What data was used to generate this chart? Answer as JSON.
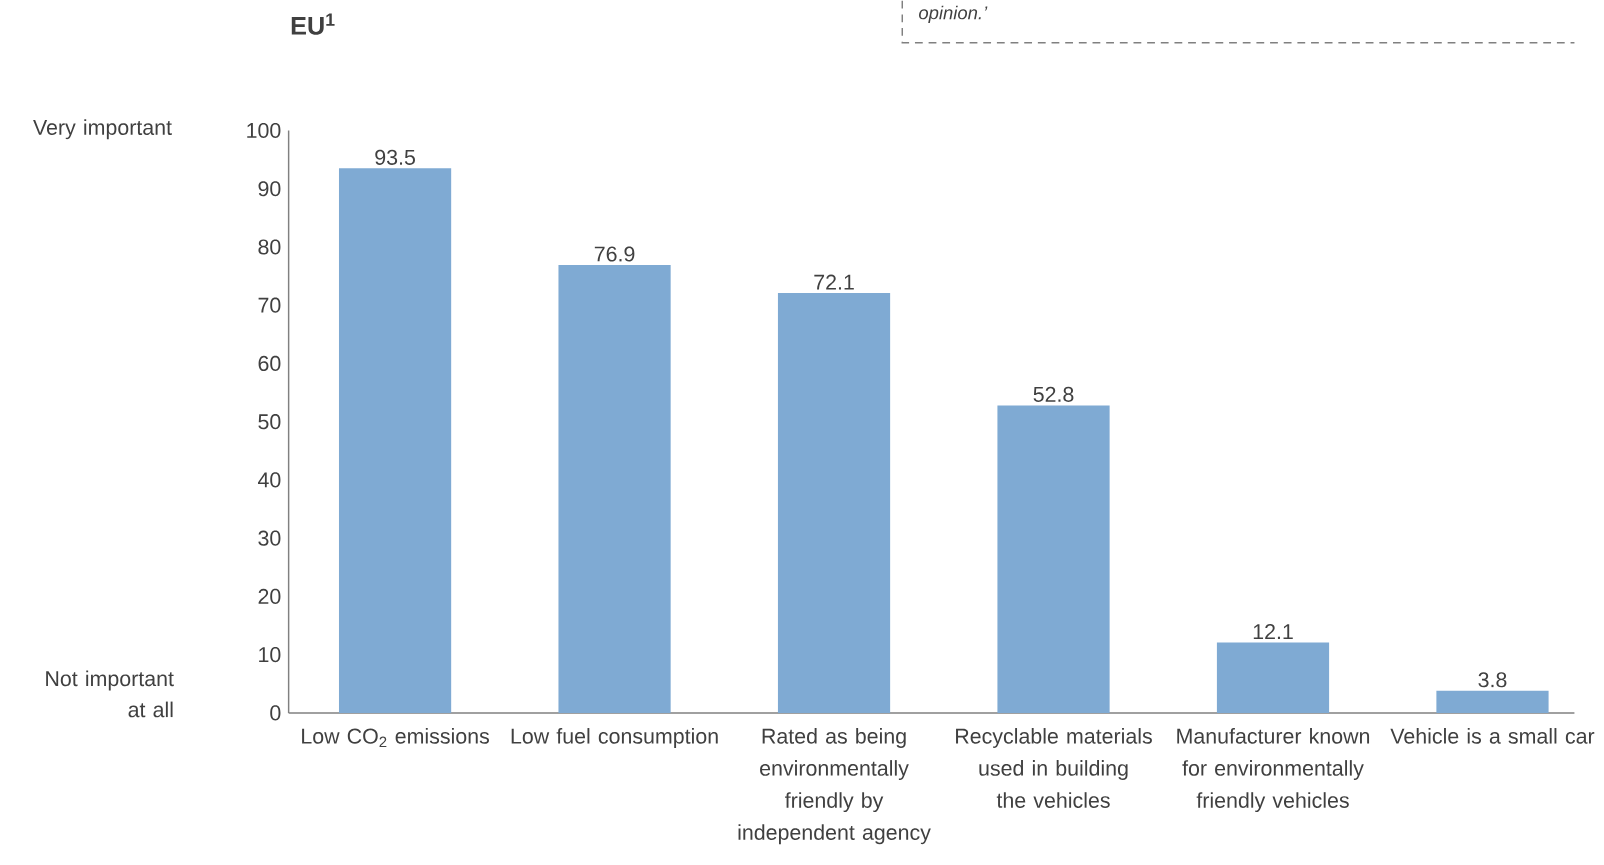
{
  "chart_data": {
    "type": "bar",
    "title": "EU$^{1}$",
    "categories": [
      "Low CO$_{2}$ emissions",
      "Low fuel consumption",
      "Rated as being environmentally friendly by independent agency",
      "Recyclable materials used in building the vehicles",
      "Manufacturer known for environmentally friendly vehicles",
      "Vehicle is a small car"
    ],
    "values": [
      93.5,
      76.9,
      72.1,
      52.8,
      12.1,
      3.8
    ],
    "color": "#7faad3",
    "ylim": [
      0,
      100
    ],
    "yticks": [
      0,
      10,
      20,
      30,
      40,
      50,
      60,
      70,
      80,
      90,
      100
    ],
    "data_labels": true,
    "grid": false,
    "annotations": [
      "Very important",
      "Not important at all",
      "opinion.’"
    ]
  }
}
